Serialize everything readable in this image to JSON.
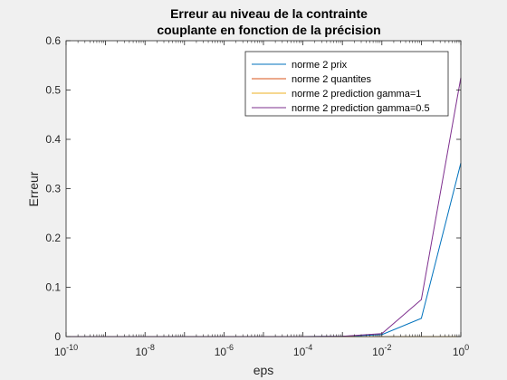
{
  "chart_data": {
    "type": "line",
    "title_line1": "Erreur au niveau de la contrainte",
    "title_line2": "couplante en fonction de la précision",
    "xlabel": "eps",
    "ylabel": "Erreur",
    "xscale": "log",
    "xlim": [
      1e-10,
      1
    ],
    "ylim": [
      0,
      0.6
    ],
    "grid": false,
    "legend_position": "top-right",
    "x_ticks": [
      {
        "base": "10",
        "exp": "-10",
        "value": 1e-10
      },
      {
        "base": "10",
        "exp": "-8",
        "value": 1e-08
      },
      {
        "base": "10",
        "exp": "-6",
        "value": 1e-06
      },
      {
        "base": "10",
        "exp": "-4",
        "value": 0.0001
      },
      {
        "base": "10",
        "exp": "-2",
        "value": 0.01
      },
      {
        "base": "10",
        "exp": "0",
        "value": 1
      }
    ],
    "y_ticks": [
      "0",
      "0.1",
      "0.2",
      "0.3",
      "0.4",
      "0.5",
      "0.6"
    ],
    "x": [
      1e-10,
      1e-09,
      1e-08,
      1e-07,
      1e-06,
      1e-05,
      0.0001,
      0.001,
      0.01,
      0.1,
      1
    ],
    "series": [
      {
        "name": "norme 2 prix",
        "color": "#0072BD",
        "values": [
          0,
          0,
          0,
          0,
          0,
          0,
          0,
          0.0004,
          0.004,
          0.037,
          0.352
        ]
      },
      {
        "name": "norme 2 quantites",
        "color": "#D95319",
        "values": [
          0,
          0,
          0,
          0,
          0,
          0,
          0,
          0,
          0,
          0,
          0
        ]
      },
      {
        "name": "norme 2 prediction gamma=1",
        "color": "#EDB120",
        "values": [
          0,
          0,
          0,
          0,
          0,
          0,
          0,
          0,
          0,
          0,
          0
        ]
      },
      {
        "name": "norme 2 prediction gamma=0.5",
        "color": "#7E2F8E",
        "values": [
          0,
          0,
          0,
          0,
          0,
          0,
          0,
          0.0006,
          0.006,
          0.075,
          0.525
        ]
      }
    ]
  }
}
